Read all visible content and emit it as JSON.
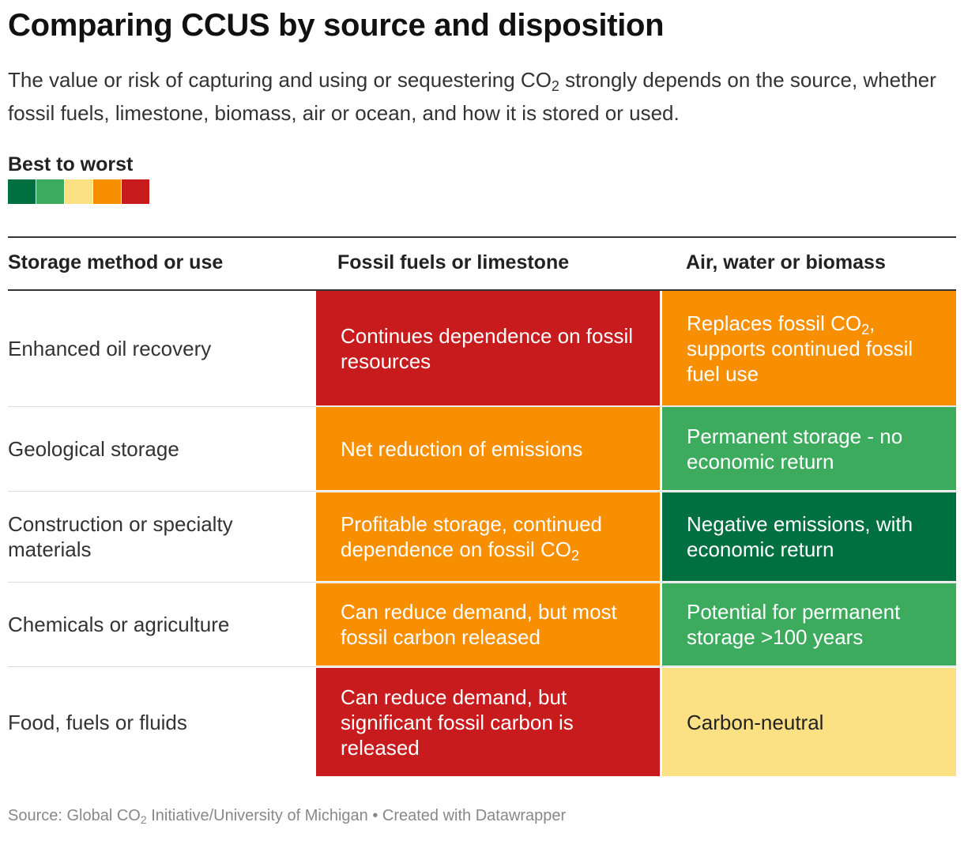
{
  "title": "Comparing CCUS by source and disposition",
  "subtitle": {
    "part1": "The value or risk of capturing and using or sequestering CO",
    "sub": "2",
    "part2": " strongly depends on the source, whether fossil fuels, limestone, biomass, air or ocean, and how it is stored or used."
  },
  "legend": {
    "title": "Best to worst",
    "colors": [
      "#007041",
      "#3dab5e",
      "#fbe183",
      "#f88f00",
      "#c81b1d"
    ]
  },
  "colors": {
    "best": "#007041",
    "good": "#3dab5e",
    "neutral": "#fbe183",
    "bad": "#f88f00",
    "worst": "#c81b1d"
  },
  "chart_data": {
    "type": "table",
    "columns": [
      "Storage method or use",
      "Fossil fuels or limestone",
      "Air, water or biomass"
    ],
    "rows": [
      {
        "label": "Enhanced oil recovery",
        "fossil": {
          "text": "Continues dependence on fossil resources",
          "rating": "worst"
        },
        "air": {
          "text": "Replaces fossil CO|2|, supports continued fossil fuel use",
          "rating": "bad"
        }
      },
      {
        "label": "Geological storage",
        "fossil": {
          "text": "Net reduction of emissions",
          "rating": "bad"
        },
        "air": {
          "text": "Permanent storage - no economic return",
          "rating": "good"
        }
      },
      {
        "label": "Construction or specialty materials",
        "fossil": {
          "text": "Profitable storage, continued dependence on fossil CO|2|",
          "rating": "bad"
        },
        "air": {
          "text": "Negative emissions, with economic return",
          "rating": "best"
        }
      },
      {
        "label": "Chemicals or agriculture",
        "fossil": {
          "text": "Can reduce demand, but most fossil carbon released",
          "rating": "bad"
        },
        "air": {
          "text": "Potential for permanent storage >100 years",
          "rating": "good"
        }
      },
      {
        "label": "Food, fuels or fluids",
        "fossil": {
          "text": "Can reduce demand, but significant fossil carbon is released",
          "rating": "worst"
        },
        "air": {
          "text": "Carbon-neutral",
          "rating": "neutral"
        }
      }
    ]
  },
  "footer": {
    "part1": "Source: Global CO",
    "sub": "2",
    "part2": " Initiative/University of Michigan • Created with Datawrapper"
  }
}
